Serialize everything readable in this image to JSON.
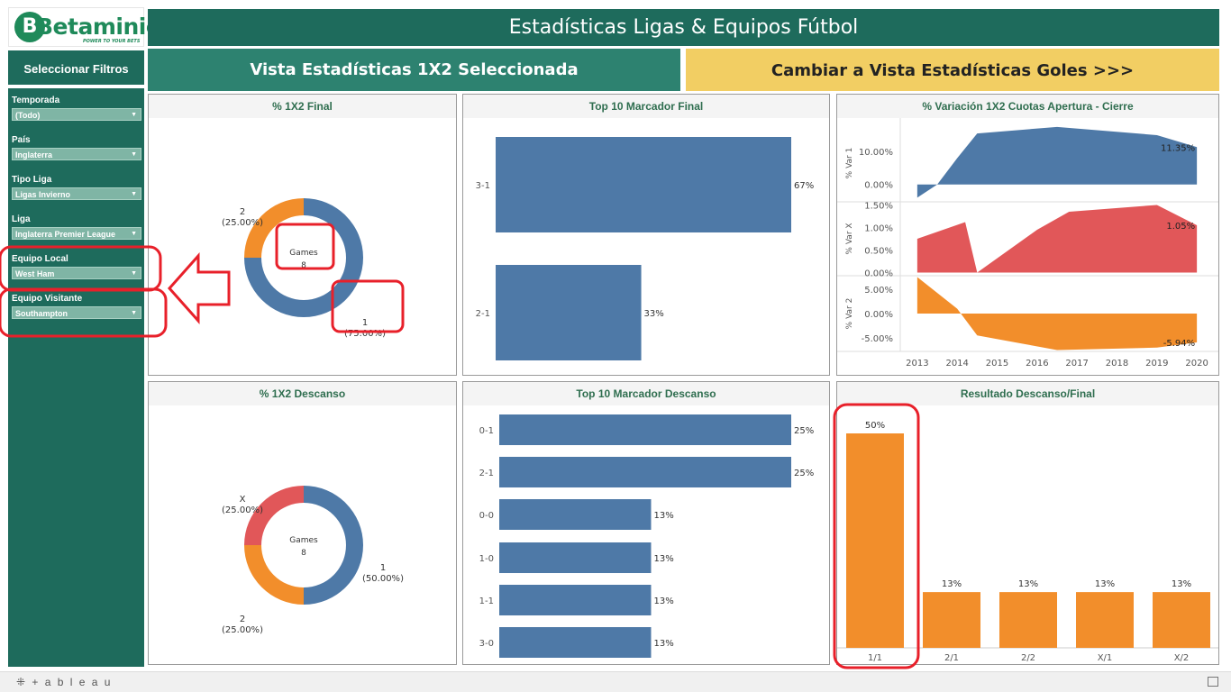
{
  "app": {
    "logo_text": "Betaminic",
    "logo_tagline": "POWER TO YOUR BETS",
    "title": "Estadísticas Ligas & Equipos Fútbol"
  },
  "sidebar": {
    "header": "Seleccionar Filtros",
    "filters": [
      {
        "label": "Temporada",
        "value": "(Todo)"
      },
      {
        "label": "País",
        "value": "Inglaterra"
      },
      {
        "label": "Tipo Liga",
        "value": "Ligas Invierno"
      },
      {
        "label": "Liga",
        "value": "Inglaterra Premier League"
      },
      {
        "label": "Equipo Local",
        "value": "West Ham"
      },
      {
        "label": "Equipo Visitante",
        "value": "Southampton"
      }
    ]
  },
  "views": {
    "active_label": "Vista Estadísticas 1X2 Seleccionada",
    "switch_label": "Cambiar a Vista Estadísticas Goles >>>"
  },
  "colors": {
    "blue": "#4e79a7",
    "orange": "#f28e2b",
    "red": "#e15759",
    "teal": "#1e6b5c",
    "yellow": "#f2ce63",
    "highlight": "#e8202a"
  },
  "panels": {
    "p1x2_final": "% 1X2 Final",
    "top10_final": "Top 10 Marcador Final",
    "variacion": "% Variación 1X2 Cuotas Apertura - Cierre",
    "p1x2_descanso": "% 1X2 Descanso",
    "top10_descanso": "Top 10 Marcador Descanso",
    "resultado_df": "Resultado Descanso/Final"
  },
  "chart_data": [
    {
      "id": "donut_final",
      "type": "pie",
      "center_label": "Games",
      "center_value": "8",
      "slices": [
        {
          "label": "1",
          "pct_label": "(75.00%)",
          "value": 75,
          "color": "#4e79a7"
        },
        {
          "label": "2",
          "pct_label": "(25.00%)",
          "value": 25,
          "color": "#f28e2b"
        }
      ]
    },
    {
      "id": "donut_descanso",
      "type": "pie",
      "center_label": "Games",
      "center_value": "8",
      "slices": [
        {
          "label": "1",
          "pct_label": "(50.00%)",
          "value": 50,
          "color": "#4e79a7"
        },
        {
          "label": "2",
          "pct_label": "(25.00%)",
          "value": 25,
          "color": "#f28e2b"
        },
        {
          "label": "X",
          "pct_label": "(25.00%)",
          "value": 25,
          "color": "#e15759"
        }
      ]
    },
    {
      "id": "top10_final",
      "type": "bar",
      "orientation": "horizontal",
      "categories": [
        "3-1",
        "2-1"
      ],
      "values": [
        67,
        33
      ],
      "labels": [
        "67%",
        "33%"
      ],
      "xlim": [
        0,
        67
      ]
    },
    {
      "id": "top10_descanso",
      "type": "bar",
      "orientation": "horizontal",
      "categories": [
        "0-1",
        "2-1",
        "0-0",
        "1-0",
        "1-1",
        "3-0"
      ],
      "values": [
        25,
        25,
        13,
        13,
        13,
        13
      ],
      "labels": [
        "25%",
        "25%",
        "13%",
        "13%",
        "13%",
        "13%"
      ],
      "xlim": [
        0,
        25
      ]
    },
    {
      "id": "variacion",
      "type": "area",
      "x": [
        2013,
        2014,
        2015,
        2016,
        2017,
        2018,
        2019,
        2020
      ],
      "x_ticks": [
        "2013",
        "2014",
        "2015",
        "2016",
        "2017",
        "2018",
        "2019",
        "2020"
      ],
      "xlim": [
        2012.8,
        2020.2
      ],
      "series": [
        {
          "name": "% Var 1",
          "color": "#4e79a7",
          "points": [
            [
              2013.0,
              -4.0
            ],
            [
              2013.5,
              0.0
            ],
            [
              2014.0,
              8.0
            ],
            [
              2014.5,
              15.5
            ],
            [
              2016.5,
              17.5
            ],
            [
              2019.0,
              15.0
            ],
            [
              2020.0,
              11.35
            ]
          ],
          "ylim": [
            -5,
            18
          ],
          "ticks": [
            0,
            10
          ],
          "tick_labels": [
            "0.00%",
            "10.00%"
          ],
          "end_label": "11.35%"
        },
        {
          "name": "% Var X",
          "color": "#e15759",
          "points": [
            [
              2013.0,
              0.75
            ],
            [
              2014.2,
              1.12
            ],
            [
              2014.5,
              0.0
            ],
            [
              2016.0,
              0.95
            ],
            [
              2016.8,
              1.35
            ],
            [
              2019.0,
              1.5
            ],
            [
              2020.0,
              1.05
            ]
          ],
          "ylim": [
            -0.05,
            1.55
          ],
          "ticks": [
            0,
            0.5,
            1.0,
            1.5
          ],
          "tick_labels": [
            "0.00%",
            "0.50%",
            "1.00%",
            "1.50%"
          ],
          "end_label": "1.05%"
        },
        {
          "name": "% Var 2",
          "color": "#f28e2b",
          "points": [
            [
              2013.0,
              7.5
            ],
            [
              2014.0,
              1.0
            ],
            [
              2014.5,
              -4.5
            ],
            [
              2016.5,
              -7.5
            ],
            [
              2019.0,
              -7.0
            ],
            [
              2020.0,
              -5.94
            ]
          ],
          "ylim": [
            -7.6,
            7.6
          ],
          "ticks": [
            5,
            0,
            -5
          ],
          "tick_labels": [
            "5.00%",
            "0.00%",
            "-5.00%"
          ],
          "end_label": "-5.94%"
        }
      ]
    },
    {
      "id": "resultado_df",
      "type": "bar",
      "categories": [
        "1/1",
        "2/1",
        "2/2",
        "X/1",
        "X/2"
      ],
      "values": [
        50,
        13,
        13,
        13,
        13
      ],
      "labels": [
        "50%",
        "13%",
        "13%",
        "13%",
        "13%"
      ],
      "ylim": [
        0,
        50
      ]
    }
  ],
  "footer": {
    "brand": "⁜ + a b l e a u"
  }
}
